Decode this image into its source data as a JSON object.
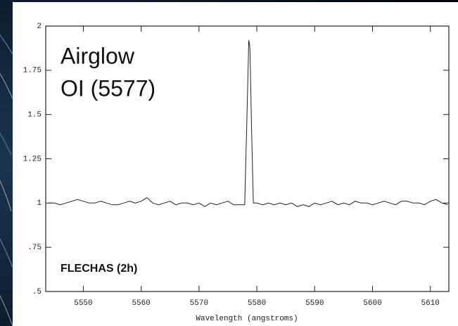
{
  "chart_data": {
    "type": "line",
    "annotations": [
      "Airglow",
      "OI (5577)",
      "FLECHAS (2h)"
    ],
    "x_label": "Wavelength (angstroms)",
    "x": [
      5544,
      5545,
      5546,
      5547,
      5548,
      5549,
      5550,
      5551,
      5552,
      5553,
      5554,
      5555,
      5556,
      5557,
      5558,
      5559,
      5560,
      5561,
      5562,
      5563,
      5564,
      5565,
      5566,
      5567,
      5568,
      5569,
      5570,
      5571,
      5572,
      5573,
      5574,
      5575,
      5576,
      5577,
      5577.9,
      5578.3,
      5578.6,
      5578.8,
      5579.1,
      5579.4,
      5580,
      5581,
      5582,
      5583,
      5584,
      5585,
      5586,
      5587,
      5588,
      5589,
      5590,
      5591,
      5592,
      5593,
      5594,
      5595,
      5596,
      5597,
      5598,
      5599,
      5600,
      5601,
      5602,
      5603,
      5604,
      5605,
      5606,
      5607,
      5608,
      5609,
      5610,
      5611,
      5612,
      5613
    ],
    "series": [
      {
        "color": "#222222",
        "values": [
          1.0,
          1.0,
          0.99,
          1.0,
          1.01,
          1.02,
          1.01,
          1.0,
          1.0,
          1.01,
          1.0,
          0.99,
          0.99,
          1.0,
          1.01,
          1.0,
          1.01,
          1.03,
          1.0,
          0.99,
          1.0,
          1.01,
          0.99,
          1.0,
          1.0,
          0.99,
          1.0,
          0.98,
          1.0,
          0.99,
          1.0,
          1.01,
          0.99,
          0.99,
          0.99,
          1.5,
          1.92,
          1.88,
          1.4,
          1.0,
          1.0,
          0.99,
          1.0,
          0.99,
          1.0,
          0.99,
          1.0,
          0.98,
          0.99,
          0.98,
          1.0,
          0.99,
          1.0,
          1.01,
          0.99,
          1.0,
          0.99,
          1.01,
          1.0,
          1.0,
          0.99,
          1.0,
          1.01,
          1.0,
          0.99,
          1.01,
          1.01,
          1.0,
          1.0,
          0.99,
          1.01,
          1.02,
          1.0,
          0.99
        ]
      }
    ],
    "xlim": [
      5543.5,
      5613.2
    ],
    "xticks": [
      5550,
      5560,
      5570,
      5580,
      5590,
      5600,
      5610
    ],
    "ylim": [
      0.5,
      2
    ],
    "yticks": [
      {
        "value": 0.5,
        "label": ".5"
      },
      {
        "value": 0.75,
        "label": ".75"
      },
      1,
      1.25,
      1.5,
      1.75,
      2
    ]
  }
}
